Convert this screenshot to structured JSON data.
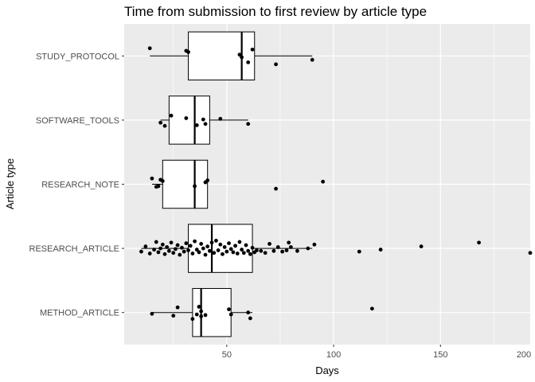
{
  "chart_data": {
    "type": "boxplot",
    "title": "Time from submission to first review by article type",
    "xlabel": "Days",
    "ylabel": "Article type",
    "xlim": [
      2,
      192
    ],
    "x_ticks": [
      50,
      100,
      150,
      200
    ],
    "categories": [
      "STUDY_PROTOCOL",
      "SOFTWARE_TOOLS",
      "RESEARCH_NOTE",
      "RESEARCH_ARTICLE",
      "METHOD_ARTICLE"
    ],
    "grid": true,
    "colors": {
      "panel": "#ebebeb",
      "grid": "#ffffff",
      "box_fill": "#ffffff",
      "ink": "#000000",
      "tick_text": "#4d4d4d"
    },
    "boxes": [
      {
        "category": "STUDY_PROTOCOL",
        "whisker_low": 14,
        "q1": 32,
        "median": 57,
        "q3": 63,
        "whisker_high": 90
      },
      {
        "category": "SOFTWARE_TOOLS",
        "whisker_low": 19,
        "q1": 23,
        "median": 35,
        "q3": 42,
        "whisker_high": 60
      },
      {
        "category": "RESEARCH_NOTE",
        "whisker_low": 15,
        "q1": 20,
        "median": 35,
        "q3": 41,
        "whisker_high": 41
      },
      {
        "category": "RESEARCH_ARTICLE",
        "whisker_low": 10,
        "q1": 32,
        "median": 43,
        "q3": 62,
        "whisker_high": 90
      },
      {
        "category": "METHOD_ARTICLE",
        "whisker_low": 15,
        "q1": 34,
        "median": 38,
        "q3": 52,
        "whisker_high": 62
      }
    ],
    "points": [
      {
        "category": "STUDY_PROTOCOL",
        "values": [
          14,
          31,
          32,
          56,
          57,
          60,
          62,
          73,
          90
        ],
        "offsets": [
          -0.12,
          -0.08,
          -0.06,
          -0.02,
          0.02,
          0.1,
          -0.1,
          0.13,
          0.06
        ]
      },
      {
        "category": "SOFTWARE_TOOLS",
        "values": [
          19,
          21,
          24,
          31,
          36,
          39,
          40,
          47,
          60
        ],
        "offsets": [
          0.04,
          0.09,
          -0.07,
          -0.03,
          0.08,
          -0.01,
          0.06,
          -0.02,
          0.06
        ]
      },
      {
        "category": "RESEARCH_NOTE",
        "values": [
          15,
          17,
          18,
          19,
          20,
          35,
          40,
          41,
          73,
          95
        ],
        "offsets": [
          -0.09,
          0.04,
          0.03,
          -0.07,
          -0.05,
          0.03,
          -0.03,
          -0.06,
          0.07,
          -0.04
        ]
      },
      {
        "category": "RESEARCH_ARTICLE",
        "values": [
          10,
          12,
          14,
          16,
          17,
          18,
          19,
          20,
          21,
          22,
          23,
          24,
          25,
          26,
          27,
          28,
          29,
          30,
          31,
          32,
          33,
          34,
          35,
          36,
          37,
          38,
          39,
          40,
          41,
          42,
          43,
          44,
          45,
          46,
          47,
          48,
          49,
          50,
          51,
          52,
          53,
          54,
          55,
          56,
          57,
          58,
          59,
          60,
          61,
          62,
          63,
          64,
          66,
          68,
          70,
          72,
          74,
          76,
          78,
          79,
          80,
          83,
          88,
          91,
          112,
          122,
          141,
          168,
          192
        ],
        "offsets": [
          0.05,
          -0.03,
          0.08,
          0.02,
          -0.1,
          0.06,
          0.0,
          -0.06,
          0.09,
          -0.02,
          0.04,
          -0.09,
          0.07,
          0.01,
          -0.05,
          0.1,
          -0.01,
          0.05,
          -0.08,
          0.03,
          -0.04,
          0.08,
          -0.11,
          0.02,
          0.06,
          -0.07,
          0.0,
          0.1,
          -0.03,
          0.04,
          -0.09,
          0.07,
          -0.12,
          0.03,
          -0.06,
          0.09,
          -0.02,
          0.05,
          -0.08,
          0.01,
          0.06,
          -0.04,
          0.08,
          -0.1,
          0.02,
          0.07,
          -0.05,
          0.04,
          0.09,
          -0.01,
          0.06,
          0.03,
          0.04,
          0.07,
          -0.07,
          0.04,
          -0.02,
          0.05,
          0.03,
          -0.09,
          -0.02,
          0.04,
          0.0,
          -0.06,
          0.05,
          0.02,
          -0.03,
          -0.09,
          0.07
        ]
      },
      {
        "category": "METHOD_ARTICLE",
        "values": [
          15,
          25,
          27,
          34,
          36,
          37,
          38,
          38,
          40,
          51,
          52,
          60,
          61,
          118
        ],
        "offsets": [
          0.02,
          0.05,
          -0.08,
          0.1,
          0.03,
          -0.09,
          0.06,
          -0.02,
          0.04,
          -0.05,
          0.03,
          0.0,
          0.09,
          -0.06
        ]
      }
    ]
  }
}
